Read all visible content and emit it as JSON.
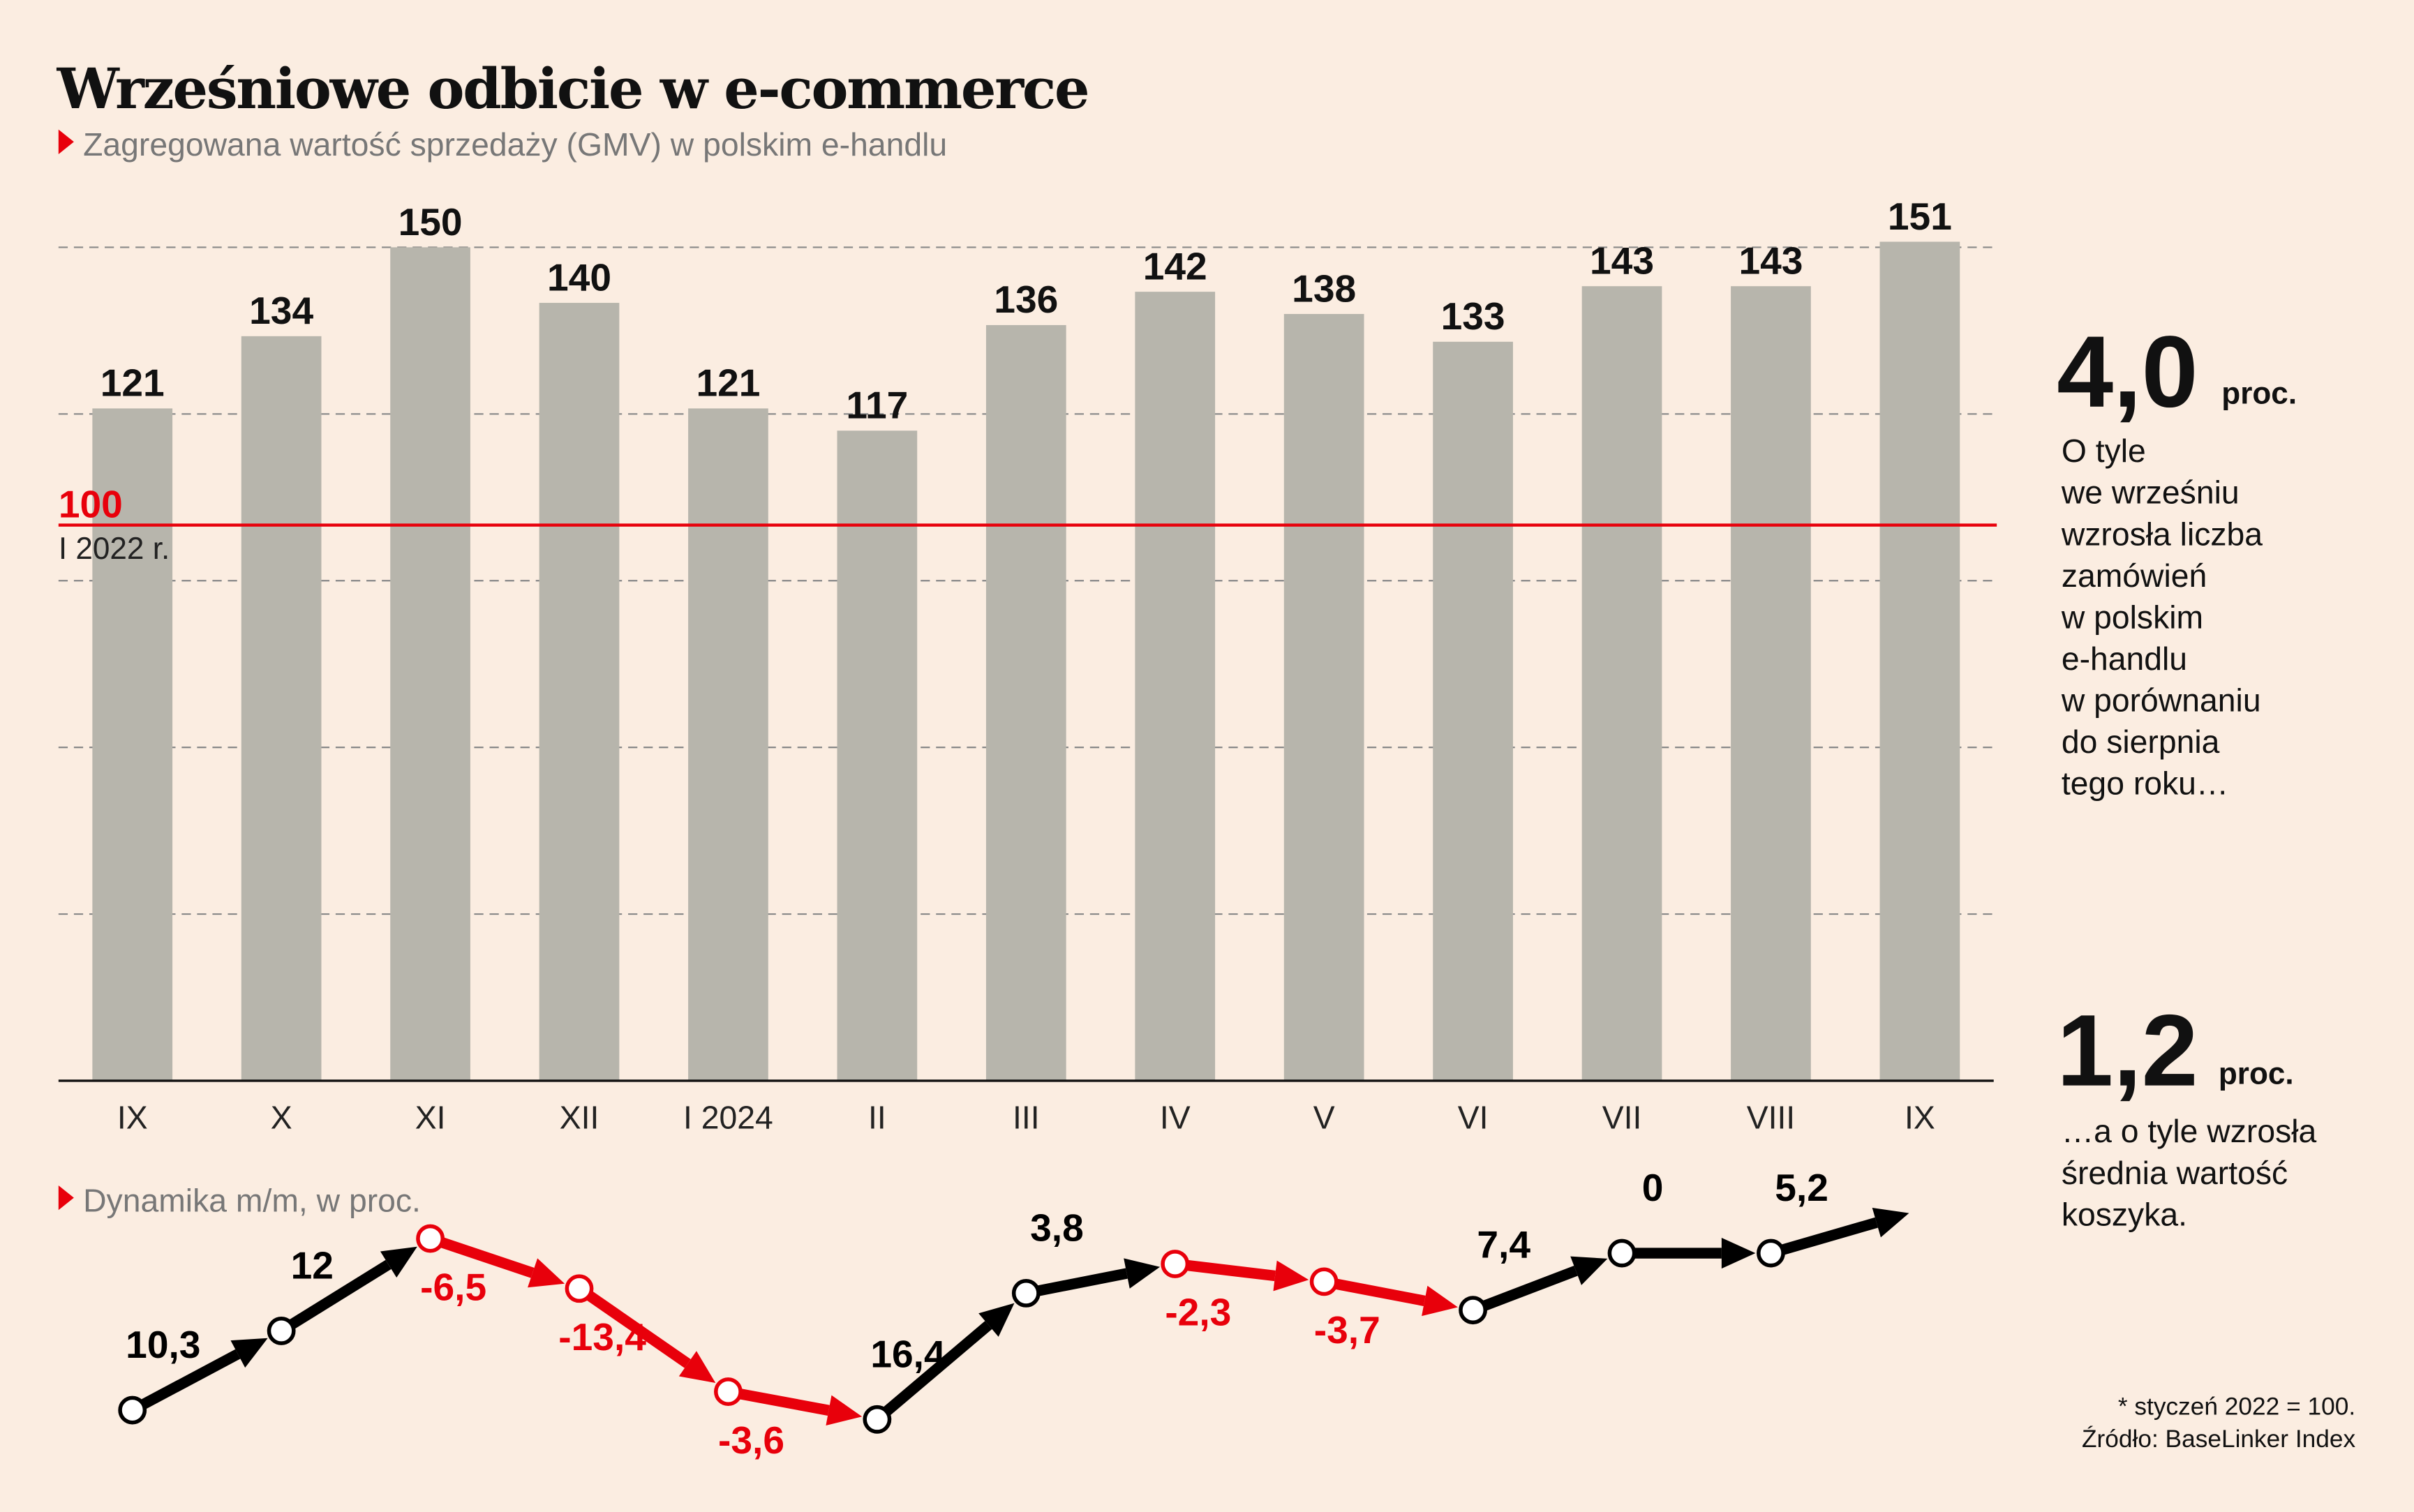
{
  "title": "Wrześniowe odbicie w e-commerce",
  "subtitle": "Zagregowana wartość sprzedaży (GMV) w polskim e-handlu",
  "colors": {
    "background": "#fbede1",
    "bar": "#b7b5ac",
    "accent": "#e8000b",
    "positive": "#000000",
    "negative": "#e8000b"
  },
  "chart_data": [
    {
      "type": "bar",
      "categories": [
        "IX",
        "X",
        "XI",
        "XII",
        "I 2024",
        "II",
        "III",
        "IV",
        "V",
        "VI",
        "VII",
        "VIII",
        "IX"
      ],
      "values": [
        121,
        134,
        150,
        140,
        121,
        117,
        136,
        142,
        138,
        133,
        143,
        143,
        151
      ],
      "ylim": [
        0,
        150
      ],
      "grid": true,
      "reference_line": {
        "value": 100,
        "label": "100",
        "sublabel": "I 2022 r."
      }
    },
    {
      "type": "line",
      "title": "Dynamika m/m, w proc.",
      "values": [
        10.3,
        12,
        -6.5,
        -13.4,
        -3.6,
        16.4,
        3.8,
        -2.3,
        -3.7,
        7.4,
        0,
        5.2
      ],
      "labels": [
        "10,3",
        "12",
        "-6,5",
        "-13,4",
        "-3,6",
        "16,4",
        "3,8",
        "-2,3",
        "-3,7",
        "7,4",
        "0",
        "5,2"
      ]
    }
  ],
  "stats": [
    {
      "value": "4,0",
      "unit": "proc.",
      "lines": [
        "O tyle",
        "we wrześniu",
        "wzrosła liczba",
        "zamówień",
        "w polskim",
        "e-handlu",
        "w porównaniu",
        "do sierpnia",
        "tego roku…"
      ]
    },
    {
      "value": "1,2",
      "unit": "proc.",
      "lines": [
        "…a o tyle wzrosła",
        "średnia wartość",
        "koszyka."
      ]
    }
  ],
  "footnote": "* styczeń 2022 = 100.",
  "source": "Źródło: BaseLinker Index"
}
